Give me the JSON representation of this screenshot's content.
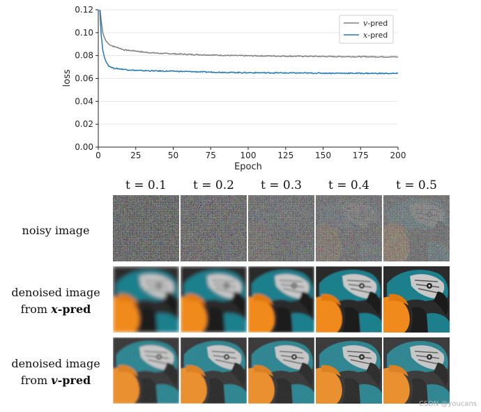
{
  "chart_data": {
    "type": "line",
    "title": "",
    "xlabel": "Epoch",
    "ylabel": "loss",
    "xlim": [
      0,
      200
    ],
    "ylim": [
      0,
      0.12
    ],
    "x_ticks": [
      "0",
      "25",
      "50",
      "75",
      "100",
      "125",
      "150",
      "175",
      "200"
    ],
    "y_ticks": [
      "0.00",
      "0.02",
      "0.04",
      "0.06",
      "0.08",
      "0.10",
      "0.12"
    ],
    "grid": "horizontal",
    "legend_position": "top-right",
    "series": [
      {
        "name_var": "v",
        "name_suffix": "-pred",
        "color": "#7f7f7f",
        "x": [
          1,
          2,
          3,
          4,
          5,
          7,
          10,
          13,
          17,
          20,
          25,
          30,
          40,
          50,
          60,
          75,
          90,
          100,
          125,
          150,
          175,
          200
        ],
        "values": [
          0.122,
          0.11,
          0.1,
          0.096,
          0.093,
          0.09,
          0.088,
          0.087,
          0.085,
          0.0845,
          0.084,
          0.083,
          0.082,
          0.0815,
          0.081,
          0.0805,
          0.08,
          0.0798,
          0.0795,
          0.0792,
          0.079,
          0.0788
        ]
      },
      {
        "name_var": "x",
        "name_suffix": "-pred",
        "color": "#1f77b4",
        "x": [
          1,
          2,
          3,
          4,
          5,
          7,
          10,
          13,
          17,
          20,
          25,
          30,
          40,
          50,
          60,
          75,
          90,
          100,
          125,
          150,
          175,
          200
        ],
        "values": [
          0.12,
          0.097,
          0.085,
          0.079,
          0.075,
          0.071,
          0.069,
          0.0685,
          0.068,
          0.0675,
          0.067,
          0.0668,
          0.0665,
          0.0663,
          0.066,
          0.0655,
          0.0652,
          0.065,
          0.0648,
          0.0646,
          0.0645,
          0.0643
        ]
      }
    ]
  },
  "figure": {
    "timesteps": [
      "t = 0.1",
      "t = 0.2",
      "t = 0.3",
      "t = 0.4",
      "t = 0.5"
    ],
    "rows": [
      {
        "line1": "noisy image",
        "line2_prefix": "",
        "line2_math": "",
        "line2_suffix": ""
      },
      {
        "line1": "denoised image",
        "line2_prefix": "from ",
        "line2_math": "x",
        "line2_suffix": "-pred"
      },
      {
        "line1": "denoised image",
        "line2_prefix": "from ",
        "line2_math": "v",
        "line2_suffix": "-pred"
      }
    ],
    "noise_levels": [
      0.1,
      0.2,
      0.3,
      0.4,
      0.5
    ],
    "watermark": "CSDN @youcans"
  }
}
